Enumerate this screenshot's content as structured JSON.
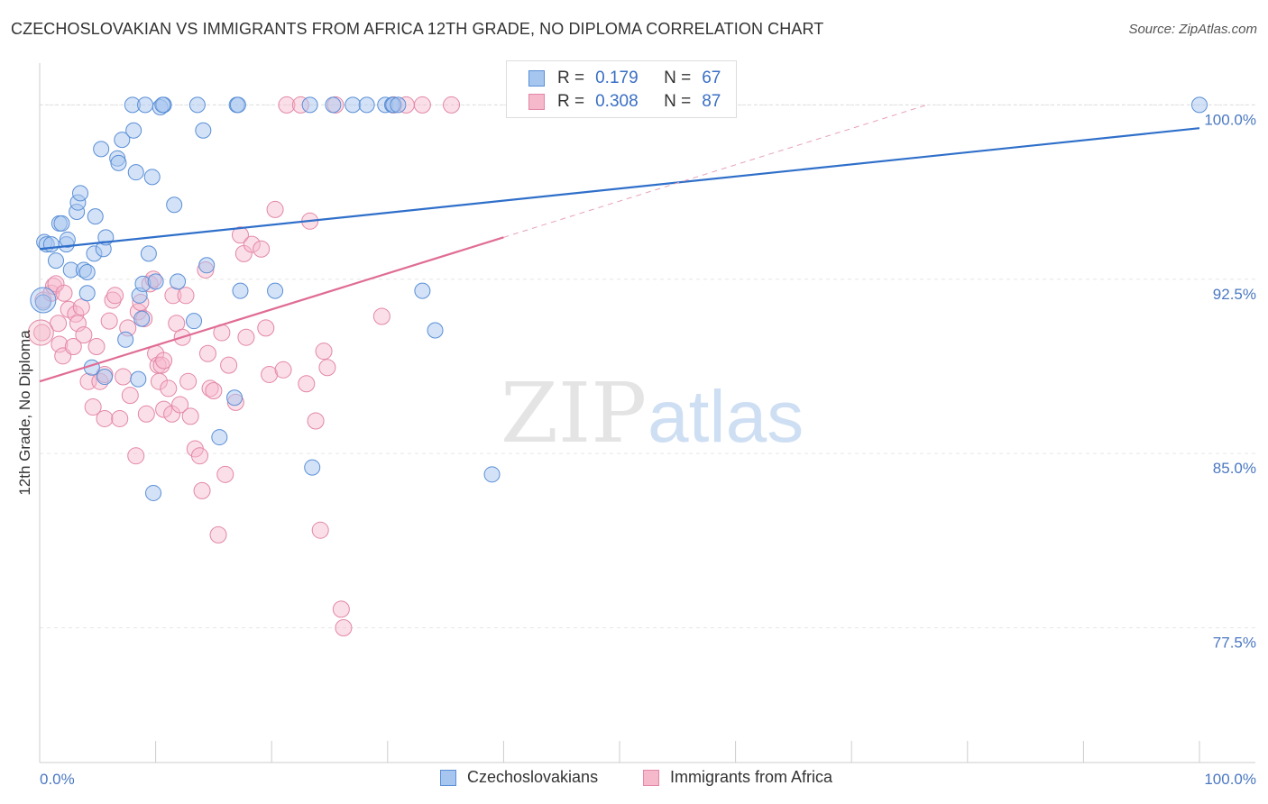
{
  "chart_data": {
    "type": "scatter",
    "title": "CZECHOSLOVAKIAN VS IMMIGRANTS FROM AFRICA 12TH GRADE, NO DIPLOMA CORRELATION CHART",
    "source": "Source: ZipAtlas.com",
    "ylabel": "12th Grade, No Diploma",
    "xlim": [
      0,
      100
    ],
    "ylim": [
      71.7,
      101.8
    ],
    "x_tick_labels": [
      "0.0%",
      "100.0%"
    ],
    "y_ticks": [
      77.5,
      85.0,
      92.5,
      100.0
    ],
    "y_tick_labels": [
      "77.5%",
      "85.0%",
      "92.5%",
      "100.0%"
    ],
    "watermark": {
      "zip": "ZIP",
      "atlas": "atlas"
    },
    "legend_stats": [
      {
        "r_label": "R =",
        "r_value": "0.179",
        "n_label": "N =",
        "n_value": "67"
      },
      {
        "r_label": "R =",
        "r_value": "0.308",
        "n_label": "N =",
        "n_value": "87"
      }
    ],
    "colors": {
      "czech_fill": "#a7c6ef",
      "czech_stroke": "#5a8fd6",
      "czech_line": "#2f6fca",
      "africa_fill": "#f6b8cb",
      "africa_stroke": "#e387a6",
      "africa_line": "#e06c95"
    },
    "series": [
      {
        "name": "Czechoslovakians",
        "trend": {
          "x0": 0,
          "y0": 93.8,
          "x1": 100,
          "y1": 99.0
        },
        "points": [
          [
            0.3,
            91.5
          ],
          [
            0.4,
            94.1
          ],
          [
            0.6,
            94.0
          ],
          [
            1.0,
            94.0
          ],
          [
            1.4,
            93.3
          ],
          [
            1.7,
            94.9
          ],
          [
            1.9,
            94.9
          ],
          [
            2.3,
            94.0
          ],
          [
            2.4,
            94.2
          ],
          [
            2.7,
            92.9
          ],
          [
            3.2,
            95.4
          ],
          [
            3.3,
            95.8
          ],
          [
            3.5,
            96.2
          ],
          [
            3.8,
            92.9
          ],
          [
            4.1,
            92.8
          ],
          [
            4.1,
            91.9
          ],
          [
            4.5,
            88.7
          ],
          [
            4.7,
            93.6
          ],
          [
            4.8,
            95.2
          ],
          [
            5.5,
            93.8
          ],
          [
            5.6,
            88.3
          ],
          [
            5.7,
            94.3
          ],
          [
            5.3,
            98.1
          ],
          [
            6.7,
            97.7
          ],
          [
            6.8,
            97.5
          ],
          [
            7.1,
            98.5
          ],
          [
            7.4,
            89.9
          ],
          [
            8.0,
            100.0
          ],
          [
            8.1,
            98.9
          ],
          [
            8.3,
            97.1
          ],
          [
            8.5,
            88.2
          ],
          [
            8.6,
            91.8
          ],
          [
            8.8,
            90.8
          ],
          [
            8.9,
            92.3
          ],
          [
            9.1,
            100.0
          ],
          [
            9.4,
            93.6
          ],
          [
            9.8,
            83.3
          ],
          [
            9.7,
            96.9
          ],
          [
            10.0,
            92.4
          ],
          [
            10.4,
            99.9
          ],
          [
            10.7,
            100.0
          ],
          [
            10.6,
            100.0
          ],
          [
            11.6,
            95.7
          ],
          [
            11.9,
            92.4
          ],
          [
            13.3,
            90.7
          ],
          [
            13.6,
            100.0
          ],
          [
            14.1,
            98.9
          ],
          [
            14.4,
            93.1
          ],
          [
            15.5,
            85.7
          ],
          [
            16.8,
            87.4
          ],
          [
            17.0,
            100.0
          ],
          [
            17.1,
            100.0
          ],
          [
            17.3,
            92.0
          ],
          [
            20.3,
            92.0
          ],
          [
            23.3,
            100.0
          ],
          [
            23.5,
            84.4
          ],
          [
            25.3,
            100.0
          ],
          [
            27.0,
            100.0
          ],
          [
            28.2,
            100.0
          ],
          [
            29.8,
            100.0
          ],
          [
            30.4,
            100.0
          ],
          [
            30.5,
            100.0
          ],
          [
            30.9,
            100.0
          ],
          [
            33.0,
            92.0
          ],
          [
            34.1,
            90.3
          ],
          [
            39.0,
            84.1
          ],
          [
            100.0,
            100.0
          ]
        ]
      },
      {
        "name": "Immigrants from Africa",
        "trend": {
          "x0": 0,
          "y0": 88.1,
          "x1": 40,
          "y1": 94.3,
          "dash_x1": 76.5,
          "dash_y1": 100.0
        },
        "points": [
          [
            0.2,
            90.2
          ],
          [
            0.3,
            91.6
          ],
          [
            1.0,
            91.9
          ],
          [
            1.2,
            92.2
          ],
          [
            1.4,
            92.3
          ],
          [
            1.6,
            90.6
          ],
          [
            1.7,
            89.7
          ],
          [
            2.0,
            89.2
          ],
          [
            2.1,
            91.9
          ],
          [
            2.5,
            91.2
          ],
          [
            2.9,
            89.6
          ],
          [
            3.1,
            91.0
          ],
          [
            3.3,
            90.6
          ],
          [
            3.6,
            91.3
          ],
          [
            3.8,
            90.1
          ],
          [
            4.2,
            88.1
          ],
          [
            4.6,
            87.0
          ],
          [
            4.9,
            89.6
          ],
          [
            5.2,
            88.1
          ],
          [
            5.6,
            88.4
          ],
          [
            5.6,
            86.5
          ],
          [
            6.0,
            90.7
          ],
          [
            6.3,
            91.6
          ],
          [
            6.5,
            91.8
          ],
          [
            6.9,
            86.5
          ],
          [
            7.2,
            88.3
          ],
          [
            7.6,
            90.4
          ],
          [
            7.8,
            87.5
          ],
          [
            8.3,
            84.9
          ],
          [
            8.5,
            91.1
          ],
          [
            8.7,
            91.5
          ],
          [
            9.0,
            90.8
          ],
          [
            9.2,
            86.7
          ],
          [
            9.5,
            92.3
          ],
          [
            9.8,
            92.5
          ],
          [
            10.0,
            89.3
          ],
          [
            10.2,
            88.8
          ],
          [
            10.3,
            88.1
          ],
          [
            10.5,
            88.8
          ],
          [
            10.7,
            89.0
          ],
          [
            10.7,
            86.9
          ],
          [
            11.1,
            87.8
          ],
          [
            11.4,
            86.7
          ],
          [
            11.5,
            91.8
          ],
          [
            11.8,
            90.6
          ],
          [
            12.1,
            87.1
          ],
          [
            12.3,
            90.0
          ],
          [
            12.6,
            91.8
          ],
          [
            12.8,
            88.1
          ],
          [
            13.0,
            86.6
          ],
          [
            13.4,
            85.2
          ],
          [
            13.8,
            84.9
          ],
          [
            14.0,
            83.4
          ],
          [
            14.3,
            92.9
          ],
          [
            14.5,
            89.3
          ],
          [
            14.7,
            87.8
          ],
          [
            15.0,
            87.7
          ],
          [
            15.4,
            81.5
          ],
          [
            15.7,
            90.2
          ],
          [
            16.0,
            84.1
          ],
          [
            16.3,
            88.8
          ],
          [
            16.9,
            87.2
          ],
          [
            17.3,
            94.4
          ],
          [
            17.6,
            93.6
          ],
          [
            17.8,
            90.0
          ],
          [
            18.3,
            94.0
          ],
          [
            19.1,
            93.8
          ],
          [
            19.5,
            90.4
          ],
          [
            19.8,
            88.4
          ],
          [
            20.3,
            95.5
          ],
          [
            21.0,
            88.6
          ],
          [
            21.3,
            100.0
          ],
          [
            22.5,
            100.0
          ],
          [
            23.0,
            88.0
          ],
          [
            23.3,
            95.0
          ],
          [
            23.8,
            86.4
          ],
          [
            24.2,
            81.7
          ],
          [
            24.5,
            89.4
          ],
          [
            24.8,
            88.7
          ],
          [
            25.5,
            100.0
          ],
          [
            26.0,
            78.3
          ],
          [
            26.2,
            77.5
          ],
          [
            29.5,
            90.9
          ],
          [
            30.5,
            100.0
          ],
          [
            31.6,
            100.0
          ],
          [
            33.0,
            100.0
          ],
          [
            35.5,
            100.0
          ]
        ]
      }
    ]
  },
  "legend": [
    "Czechoslovakians",
    "Immigrants from Africa"
  ]
}
